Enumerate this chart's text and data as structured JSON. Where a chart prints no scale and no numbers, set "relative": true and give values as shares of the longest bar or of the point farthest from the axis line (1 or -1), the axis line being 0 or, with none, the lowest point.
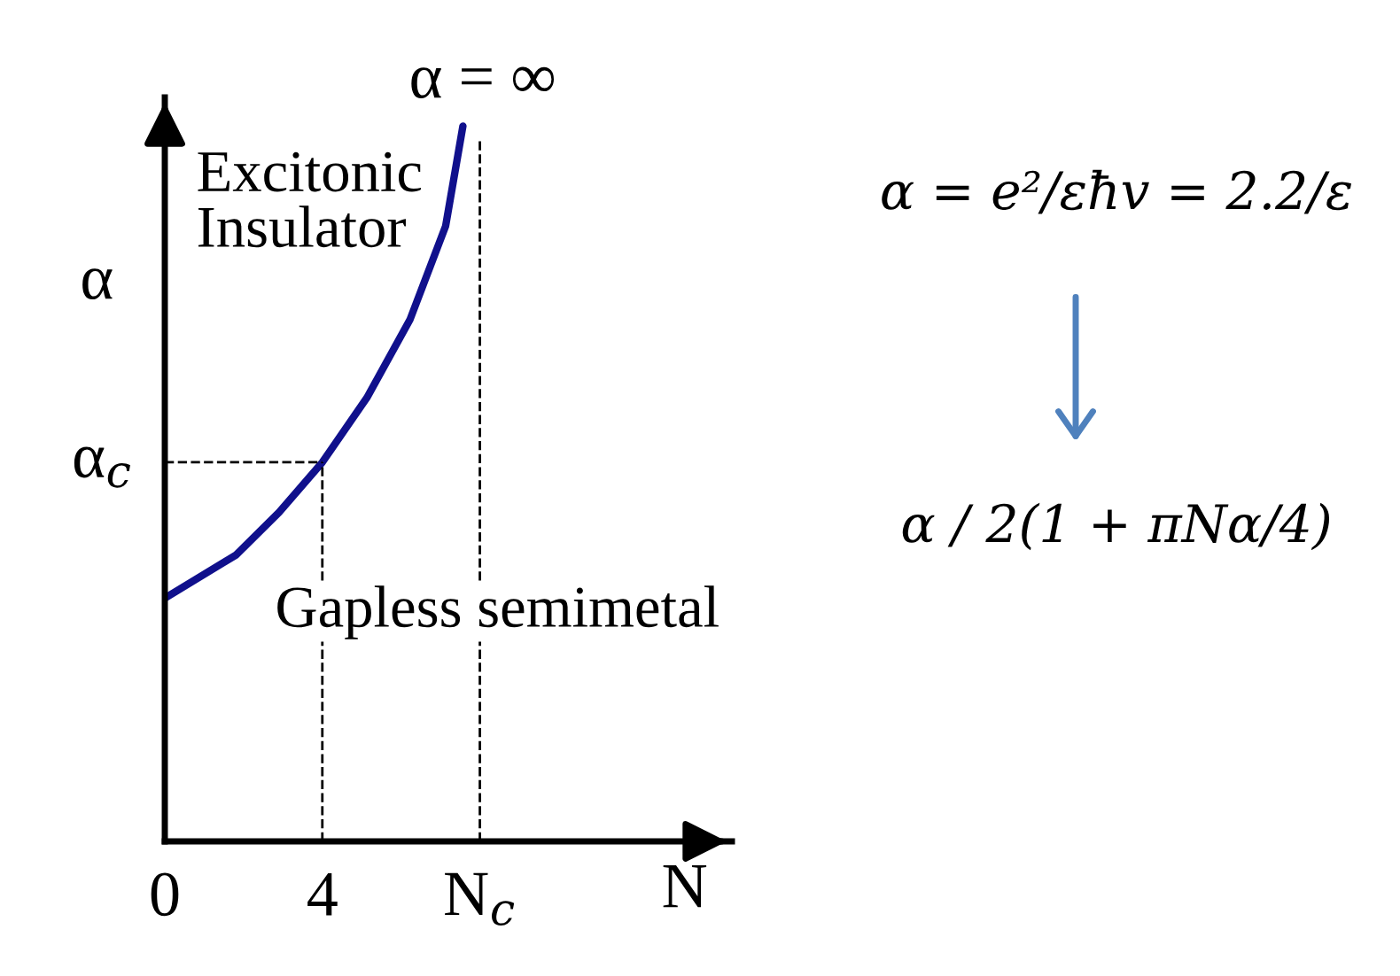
{
  "chart_data": {
    "type": "line",
    "relative": true,
    "xlabel": "N",
    "ylabel": "α",
    "x": [
      0,
      1.8,
      2.9,
      4,
      5.13,
      6.23,
      7.13,
      7.57
    ],
    "series": [
      {
        "color": "#10108c",
        "values": [
          0.34,
          0.4,
          0.46,
          0.53,
          0.62,
          0.73,
          0.86,
          1
        ]
      }
    ],
    "xlim": [
      0,
      14.4
    ],
    "xticks": [
      0,
      4,
      {
        "value": 8,
        "label": "N$_{c}$"
      }
    ],
    "ref_lines": [
      {
        "axis": "x",
        "value": 4,
        "line_style": "dashed",
        "color": "#000000"
      },
      {
        "axis": "x",
        "value": 8,
        "line_style": "dashed",
        "color": "#000000"
      },
      {
        "axis": "y",
        "value": 0.53,
        "label": "α$_{c}$",
        "line_style": "dashed",
        "color": "#000000"
      }
    ],
    "annotations": [
      {
        "text": "α = ∞",
        "x": 7.57,
        "y": 1
      },
      "Excitonic\nInsulator",
      "Gapless semimetal",
      "α = e²/εħv = 2.2/ε",
      "α / 2(1 + πNα/4)"
    ],
    "grid": false,
    "legend": false,
    "marker": "none",
    "line_style": "solid",
    "tick_labels": "x"
  }
}
